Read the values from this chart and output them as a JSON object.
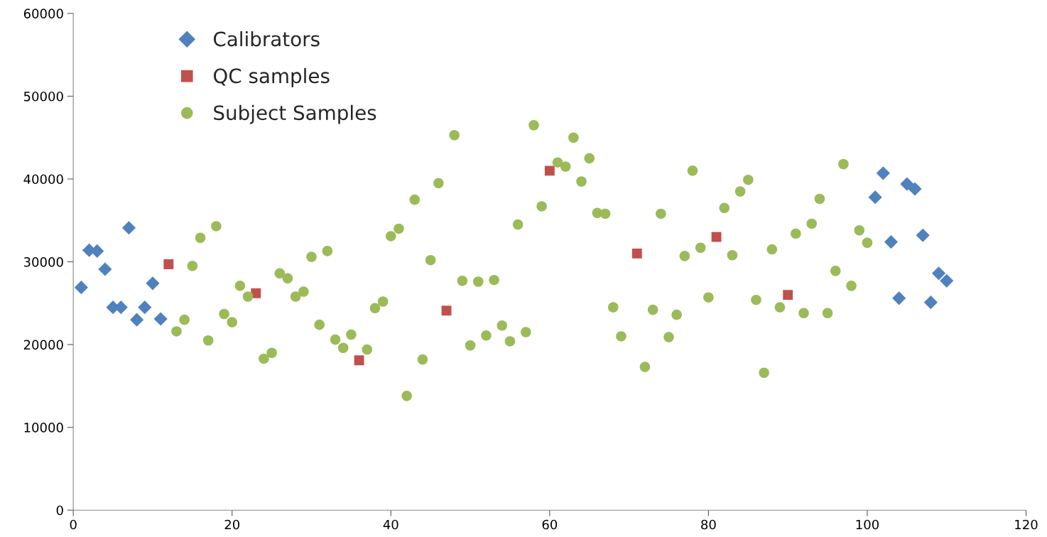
{
  "chart_data": {
    "type": "scatter",
    "xlim": [
      0,
      120
    ],
    "xticks": [
      0,
      20,
      40,
      60,
      80,
      100,
      120
    ],
    "ylim": [
      0,
      60000
    ],
    "yticks": [
      0,
      10000,
      20000,
      30000,
      40000,
      50000,
      60000
    ],
    "grid": false,
    "legend": "top left",
    "series": [
      {
        "name": "Calibrators",
        "color": "#4f81bd",
        "marker": "diamond",
        "x": [
          1,
          2,
          3,
          4,
          5,
          6,
          7,
          8,
          9,
          10,
          11,
          101,
          102,
          103,
          104,
          105,
          106,
          107,
          108,
          109,
          110
        ],
        "values": [
          26900,
          31400,
          31300,
          29100,
          24500,
          24500,
          34100,
          23000,
          24500,
          27400,
          23100,
          37800,
          40700,
          32400,
          25600,
          39400,
          38800,
          33200,
          25100,
          28600,
          27700
        ]
      },
      {
        "name": "QC samples",
        "color": "#c0504d",
        "marker": "square",
        "x": [
          12,
          23,
          36,
          47,
          60,
          71,
          81,
          90
        ],
        "values": [
          29700,
          26200,
          18100,
          24100,
          41000,
          31000,
          33000,
          26000
        ]
      },
      {
        "name": "Subject Samples",
        "color": "#9bbb59",
        "marker": "circle",
        "x": [
          13,
          14,
          15,
          16,
          17,
          18,
          19,
          20,
          21,
          22,
          24,
          25,
          26,
          27,
          28,
          29,
          30,
          31,
          32,
          33,
          34,
          35,
          37,
          38,
          39,
          40,
          41,
          42,
          43,
          44,
          45,
          46,
          48,
          49,
          50,
          51,
          52,
          53,
          54,
          55,
          56,
          57,
          58,
          59,
          61,
          62,
          63,
          64,
          65,
          66,
          67,
          68,
          69,
          72,
          73,
          74,
          75,
          76,
          77,
          78,
          79,
          80,
          82,
          83,
          84,
          85,
          86,
          87,
          88,
          89,
          91,
          92,
          93,
          94,
          95,
          96,
          97,
          98,
          99,
          100
        ],
        "values": [
          21600,
          23000,
          29500,
          32900,
          20500,
          34300,
          23700,
          22700,
          27100,
          25800,
          18300,
          19000,
          28600,
          28000,
          25800,
          26400,
          30600,
          22400,
          31300,
          20600,
          19600,
          21200,
          19400,
          24400,
          25200,
          33100,
          34000,
          13800,
          37500,
          18200,
          30200,
          39500,
          45300,
          27700,
          19900,
          27600,
          21100,
          27800,
          22300,
          20400,
          34500,
          21500,
          46500,
          36700,
          42000,
          41500,
          45000,
          39700,
          42500,
          35900,
          35800,
          24500,
          21000,
          17300,
          24200,
          35800,
          20900,
          23600,
          30700,
          41000,
          31700,
          25700,
          36500,
          30800,
          38500,
          39900,
          25400,
          16600,
          31500,
          24500,
          33400,
          23800,
          34600,
          37600,
          23800,
          28900,
          41800,
          27100,
          33800,
          32300
        ]
      }
    ]
  }
}
